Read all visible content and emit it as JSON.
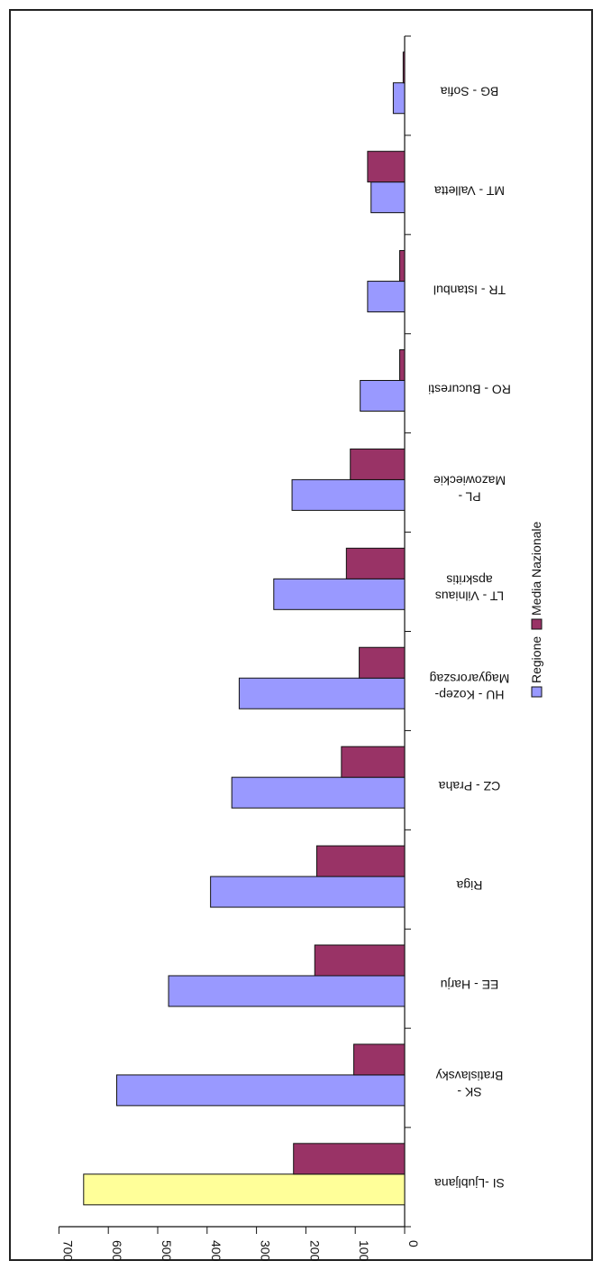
{
  "chart_data": {
    "type": "bar",
    "orientation": "horizontal",
    "title": "",
    "xlabel": "",
    "ylabel": "",
    "xlim": [
      0,
      700
    ],
    "ticks": [
      "0",
      "100",
      "200",
      "300",
      "400",
      "500",
      "600",
      "700"
    ],
    "tick_values": [
      0,
      100,
      200,
      300,
      400,
      500,
      600,
      700
    ],
    "categories": [
      [
        "SI -Ljubljana"
      ],
      [
        "SK -",
        "Bratislavsky"
      ],
      [
        "EE - Harju"
      ],
      [
        "Riga"
      ],
      [
        "CZ - Praha"
      ],
      [
        "HU - Kozep-",
        "Magyarorszag"
      ],
      [
        "LT - Vilniaus",
        "apskritis"
      ],
      [
        "PL -",
        "Mazowieckie"
      ],
      [
        "RO - Bucuresti"
      ],
      [
        "TR - Istanbul"
      ],
      [
        "MT - Valletta"
      ],
      [
        "BG - Sofia"
      ]
    ],
    "series": [
      {
        "name": "Regione",
        "color": "#9999ff",
        "highlight": {
          "index": 0,
          "color": "#ffff99"
        },
        "values": [
          650,
          583,
          478,
          393,
          350,
          335,
          265,
          228,
          90,
          75,
          68,
          23
        ]
      },
      {
        "name": "Media Nazionale",
        "color": "#993366",
        "values": [
          225,
          103,
          182,
          178,
          128,
          92,
          118,
          110,
          10,
          10,
          75,
          3
        ]
      }
    ],
    "legend_position": "right",
    "grid": false,
    "rotated": "upside-down"
  }
}
